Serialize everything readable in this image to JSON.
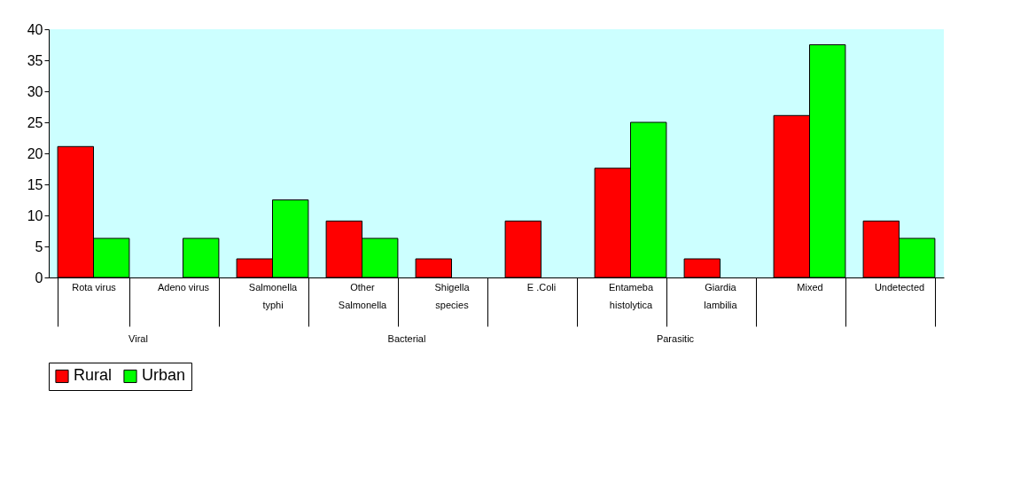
{
  "chart_data": {
    "type": "bar",
    "categories": [
      "Rota virus",
      "Adeno virus",
      "Salmonella typhi",
      "Other Salmonella",
      "Shigella species",
      "E .Coli",
      "Entameba histolytica",
      "Giardia lambilia",
      "Mixed",
      "Undetected"
    ],
    "series": [
      {
        "name": "Rural",
        "color": "#ff0000",
        "values": [
          21.1,
          null,
          3.0,
          9.1,
          3.0,
          9.1,
          17.6,
          3.0,
          26.1,
          9.1
        ]
      },
      {
        "name": "Urban",
        "color": "#00ff00",
        "values": [
          6.3,
          6.3,
          12.5,
          6.3,
          null,
          null,
          25.0,
          null,
          37.5,
          6.3
        ]
      }
    ],
    "annotations": [
      "Viral",
      "Bacterial",
      "Parasitic"
    ],
    "ylim": [
      0,
      40
    ],
    "yticks": [
      0,
      5,
      10,
      15,
      20,
      25,
      30,
      35,
      40
    ],
    "grid": false,
    "legend": "bottom"
  }
}
